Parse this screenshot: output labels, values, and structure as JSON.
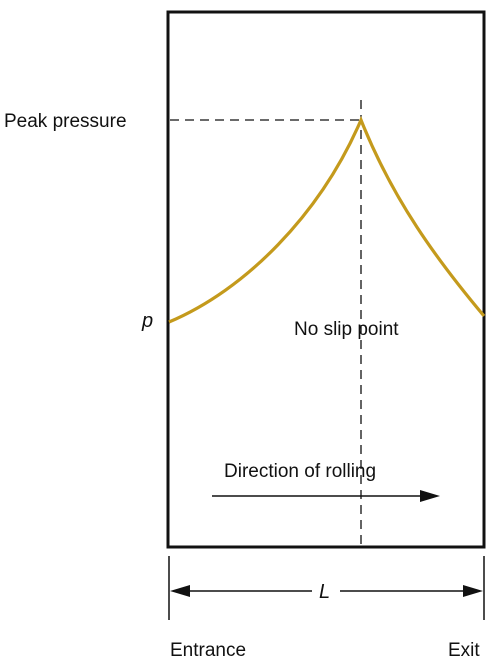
{
  "diagram": {
    "labels": {
      "peak_pressure": "Peak pressure",
      "pressure_symbol": "p",
      "no_slip_point": "No slip point",
      "direction": "Direction of rolling",
      "length_symbol": "L",
      "entrance": "Entrance",
      "exit": "Exit"
    },
    "colors": {
      "curve": "#c49a1c",
      "frame": "#111111",
      "guide_lines": "#111111"
    }
  }
}
